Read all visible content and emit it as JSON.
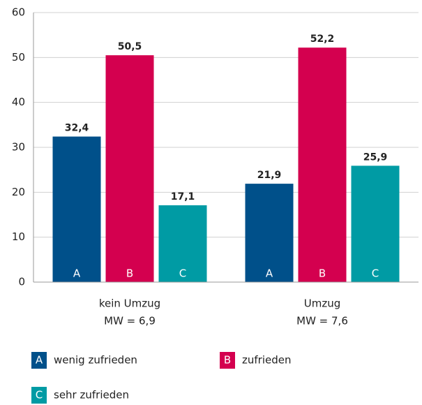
{
  "chart_data": {
    "type": "bar",
    "categories": [
      "kein Umzug",
      "Umzug"
    ],
    "category_sublabels": [
      "MW = 6,9",
      "MW = 7,6"
    ],
    "series": [
      {
        "key": "A",
        "name": "wenig zufrieden",
        "color": "#00508a",
        "values": [
          32.4,
          21.9
        ],
        "value_labels": [
          "32,4",
          "21,9"
        ]
      },
      {
        "key": "B",
        "name": "zufrieden",
        "color": "#d4004f",
        "values": [
          50.5,
          52.2
        ],
        "value_labels": [
          "50,5",
          "52,2"
        ]
      },
      {
        "key": "C",
        "name": "sehr zufrieden",
        "color": "#009ba4",
        "values": [
          17.1,
          25.9
        ],
        "value_labels": [
          "17,1",
          "25,9"
        ]
      }
    ],
    "ylim": [
      0,
      60
    ],
    "yticks": [
      0,
      10,
      20,
      30,
      40,
      50,
      60
    ],
    "grid": true
  }
}
